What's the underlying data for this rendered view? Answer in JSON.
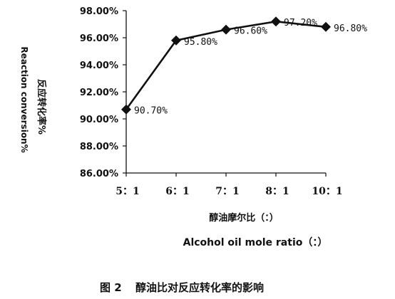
{
  "chart_data": {
    "type": "line",
    "categories": [
      "5：1",
      "6：1",
      "7：1",
      "8：1",
      "10：1"
    ],
    "series": [
      {
        "values": [
          90.7,
          95.8,
          96.6,
          97.2,
          96.8
        ],
        "labels": [
          "90.70%",
          "95.80%",
          "96.60%",
          "97.20%",
          "96.80%"
        ]
      }
    ],
    "ylim": [
      86,
      98
    ],
    "yticks": [
      86,
      88,
      90,
      92,
      94,
      96,
      98
    ],
    "ytick_labels": [
      "86.00%",
      "88.00%",
      "90.00%",
      "92.00%",
      "94.00%",
      "96.00%",
      "98.00%"
    ],
    "ylabel_cn": "反应转化率%",
    "ylabel_en": "Reaction conversion%",
    "xlabel_cn": "醇油摩尔比（：）",
    "xlabel_en": "Alcohol oil mole ratio（：）",
    "grid": false,
    "legend": "none",
    "marker": "diamond",
    "line_color": "#111111"
  },
  "caption": {
    "figure_number": "图 2",
    "title": "醇油比对反应转化率的影响"
  }
}
